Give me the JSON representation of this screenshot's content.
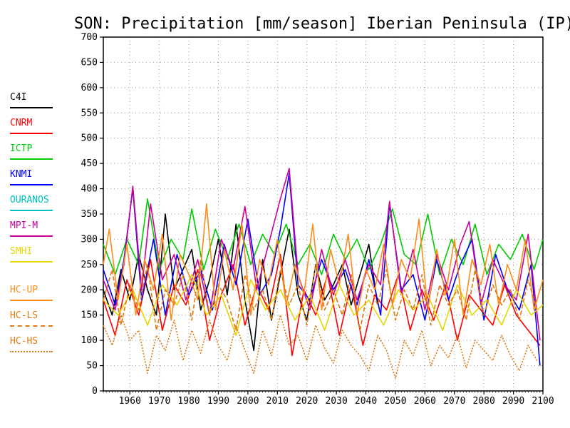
{
  "chart_data": {
    "type": "line",
    "title": "SON: Precipitation [mm/season] Iberian Peninsula (IP)",
    "xlabel": "",
    "ylabel": "",
    "xlim": [
      1951,
      2100
    ],
    "ylim": [
      0,
      700
    ],
    "x_ticks": [
      1960,
      1970,
      1980,
      1990,
      2000,
      2010,
      2020,
      2030,
      2040,
      2050,
      2060,
      2070,
      2080,
      2090,
      2100
    ],
    "y_ticks": [
      0,
      50,
      100,
      150,
      200,
      250,
      300,
      350,
      400,
      450,
      500,
      550,
      600,
      650,
      700
    ],
    "grid": true,
    "legend_position": "left",
    "series": [
      {
        "name": "C4I",
        "color": "#000000",
        "dash": "solid",
        "x": [
          1951,
          1954,
          1957,
          1960,
          1963,
          1966,
          1969,
          1972,
          1975,
          1978,
          1981,
          1984,
          1987,
          1990,
          1993,
          1996,
          1999,
          2002,
          2005,
          2008,
          2011,
          2014,
          2017,
          2020,
          2023,
          2026,
          2029,
          2032,
          2035,
          2038,
          2041,
          2044
        ],
        "values": [
          200,
          150,
          240,
          180,
          270,
          200,
          150,
          350,
          200,
          240,
          280,
          160,
          220,
          300,
          190,
          330,
          180,
          80,
          260,
          140,
          230,
          320,
          190,
          140,
          250,
          180,
          210,
          250,
          170,
          230,
          290,
          170
        ]
      },
      {
        "name": "CNRM",
        "color": "#ff0000",
        "dash": "solid",
        "x": [
          1951,
          1955,
          1959,
          1963,
          1967,
          1971,
          1975,
          1979,
          1983,
          1987,
          1991,
          1995,
          1999,
          2003,
          2007,
          2011,
          2015,
          2019,
          2023,
          2027,
          2031,
          2035,
          2039,
          2043,
          2047,
          2051,
          2055,
          2059,
          2063,
          2067,
          2071,
          2075,
          2079,
          2083,
          2087,
          2091,
          2095,
          2099
        ],
        "values": [
          180,
          110,
          220,
          150,
          260,
          120,
          210,
          170,
          240,
          100,
          190,
          250,
          130,
          210,
          160,
          270,
          70,
          200,
          150,
          230,
          110,
          210,
          90,
          190,
          160,
          230,
          120,
          200,
          140,
          210,
          100,
          190,
          160,
          130,
          210,
          150,
          120,
          90
        ]
      },
      {
        "name": "ICTP",
        "color": "#00cc00",
        "dash": "solid",
        "x": [
          1951,
          1955,
          1959,
          1963,
          1966,
          1970,
          1974,
          1978,
          1981,
          1985,
          1989,
          1993,
          1997,
          2001,
          2005,
          2009,
          2013,
          2017,
          2021,
          2025,
          2029,
          2033,
          2037,
          2041,
          2045,
          2049,
          2053,
          2057,
          2061,
          2065,
          2069,
          2073,
          2077,
          2081,
          2085,
          2089,
          2093,
          2097,
          2100
        ],
        "values": [
          290,
          230,
          300,
          250,
          380,
          240,
          300,
          260,
          360,
          240,
          320,
          260,
          330,
          250,
          310,
          270,
          330,
          250,
          290,
          230,
          310,
          260,
          300,
          240,
          290,
          360,
          270,
          250,
          350,
          230,
          300,
          250,
          330,
          230,
          290,
          260,
          310,
          240,
          300
        ]
      },
      {
        "name": "KNMI",
        "color": "#0000ff",
        "dash": "solid",
        "x": [
          1951,
          1955,
          1958,
          1961,
          1964,
          1968,
          1972,
          1976,
          1980,
          1984,
          1988,
          1992,
          1996,
          2000,
          2004,
          2008,
          2011,
          2014,
          2017,
          2021,
          2025,
          2029,
          2033,
          2037,
          2041,
          2045,
          2048,
          2052,
          2056,
          2060,
          2064,
          2068,
          2072,
          2076,
          2080,
          2084,
          2088,
          2092,
          2096,
          2099
        ],
        "values": [
          240,
          170,
          260,
          400,
          180,
          300,
          150,
          270,
          190,
          240,
          160,
          290,
          210,
          340,
          190,
          230,
          320,
          430,
          210,
          180,
          260,
          200,
          240,
          170,
          260,
          150,
          370,
          200,
          230,
          140,
          260,
          180,
          250,
          300,
          140,
          270,
          200,
          160,
          250,
          50
        ]
      },
      {
        "name": "OURANOS",
        "color": "#00c0c0",
        "dash": "solid",
        "x": [],
        "values": []
      },
      {
        "name": "MPI-M",
        "color": "#cc0099",
        "dash": "solid",
        "x": [
          1951,
          1955,
          1958,
          1961,
          1964,
          1967,
          1971,
          1975,
          1979,
          1983,
          1987,
          1991,
          1995,
          1999,
          2003,
          2007,
          2011,
          2014,
          2017,
          2021,
          2025,
          2029,
          2033,
          2037,
          2041,
          2045,
          2048,
          2052,
          2056,
          2060,
          2064,
          2068,
          2072,
          2075,
          2079,
          2083,
          2087,
          2091,
          2095,
          2099
        ],
        "values": [
          220,
          160,
          250,
          405,
          200,
          370,
          220,
          270,
          180,
          260,
          150,
          300,
          240,
          365,
          200,
          290,
          380,
          440,
          230,
          160,
          280,
          190,
          260,
          180,
          250,
          210,
          375,
          190,
          280,
          160,
          270,
          200,
          290,
          335,
          170,
          260,
          210,
          180,
          310,
          100
        ]
      },
      {
        "name": "SMHI",
        "color": "#e6d700",
        "dash": "solid",
        "x": [
          1951,
          1956,
          1961,
          1966,
          1971,
          1976,
          1981,
          1986,
          1991,
          1996,
          2001,
          2006,
          2011,
          2016,
          2021,
          2026,
          2031,
          2036,
          2041,
          2046,
          2051,
          2056,
          2061,
          2066,
          2071,
          2076,
          2081,
          2086,
          2091,
          2096,
          2100
        ],
        "values": [
          180,
          150,
          200,
          130,
          210,
          170,
          230,
          150,
          190,
          110,
          220,
          160,
          200,
          140,
          190,
          120,
          210,
          150,
          180,
          130,
          200,
          160,
          190,
          120,
          210,
          150,
          180,
          130,
          200,
          150,
          170
        ]
      },
      {
        "name": "HC-UP",
        "color": "#ff8c1a",
        "dash": "solid",
        "x": [
          1951,
          1953,
          1956,
          1959,
          1962,
          1965,
          1968,
          1971,
          1974,
          1977,
          1980,
          1983,
          1986,
          1989,
          1992,
          1995,
          1998,
          2001,
          2004,
          2007,
          2010,
          2013,
          2016,
          2019,
          2022,
          2025,
          2028,
          2031,
          2034,
          2037,
          2040,
          2043,
          2046,
          2049,
          2052,
          2055,
          2058,
          2061,
          2064,
          2067,
          2070,
          2073,
          2076,
          2079,
          2082,
          2085,
          2088,
          2091,
          2094,
          2097,
          2100
        ],
        "values": [
          250,
          320,
          180,
          290,
          150,
          260,
          200,
          310,
          140,
          270,
          230,
          180,
          370,
          160,
          280,
          200,
          330,
          150,
          260,
          210,
          300,
          170,
          250,
          190,
          330,
          160,
          280,
          210,
          310,
          150,
          240,
          200,
          290,
          170,
          260,
          220,
          340,
          160,
          280,
          190,
          300,
          150,
          260,
          210,
          290,
          170,
          250,
          200,
          300,
          160,
          220
        ]
      },
      {
        "name": "HC-LS",
        "color": "#e07a10",
        "dash": "dashed",
        "x": [
          1951,
          1954,
          1957,
          1960,
          1963,
          1966,
          1969,
          1972,
          1975,
          1978,
          1981,
          1984,
          1987,
          1990,
          1993,
          1996,
          1999,
          2002,
          2005,
          2008,
          2011,
          2014,
          2017,
          2020,
          2023,
          2026,
          2029,
          2032,
          2035,
          2038,
          2041,
          2044,
          2047,
          2050,
          2053,
          2056,
          2059,
          2062,
          2065,
          2068,
          2071,
          2074,
          2077,
          2080,
          2083,
          2086,
          2089,
          2092,
          2095,
          2098
        ],
        "values": [
          180,
          240,
          130,
          210,
          160,
          250,
          120,
          200,
          170,
          230,
          140,
          260,
          150,
          210,
          180,
          120,
          230,
          160,
          200,
          140,
          240,
          170,
          210,
          130,
          250,
          160,
          200,
          150,
          230,
          120,
          210,
          170,
          240,
          140,
          200,
          160,
          230,
          130,
          210,
          170,
          200,
          140,
          240,
          150,
          210,
          170,
          200,
          140,
          220,
          160
        ]
      },
      {
        "name": "HC-HS",
        "color": "#e07a10",
        "dash": "dotted",
        "x": [
          1951,
          1954,
          1957,
          1960,
          1963,
          1966,
          1969,
          1972,
          1975,
          1978,
          1981,
          1984,
          1987,
          1990,
          1993,
          1996,
          1999,
          2002,
          2005,
          2008,
          2011,
          2014,
          2017,
          2020,
          2023,
          2026,
          2029,
          2032,
          2035,
          2038,
          2041,
          2044,
          2047,
          2050,
          2053,
          2056,
          2059,
          2062,
          2065,
          2068,
          2071,
          2074,
          2077,
          2080,
          2083,
          2086,
          2089,
          2092,
          2095,
          2098
        ],
        "values": [
          130,
          90,
          150,
          100,
          120,
          35,
          110,
          80,
          140,
          60,
          120,
          75,
          140,
          90,
          60,
          130,
          80,
          35,
          120,
          70,
          150,
          90,
          110,
          60,
          130,
          85,
          55,
          120,
          90,
          70,
          40,
          110,
          80,
          25,
          100,
          70,
          120,
          50,
          90,
          65,
          110,
          45,
          100,
          80,
          60,
          110,
          70,
          40,
          90,
          60
        ]
      }
    ]
  }
}
